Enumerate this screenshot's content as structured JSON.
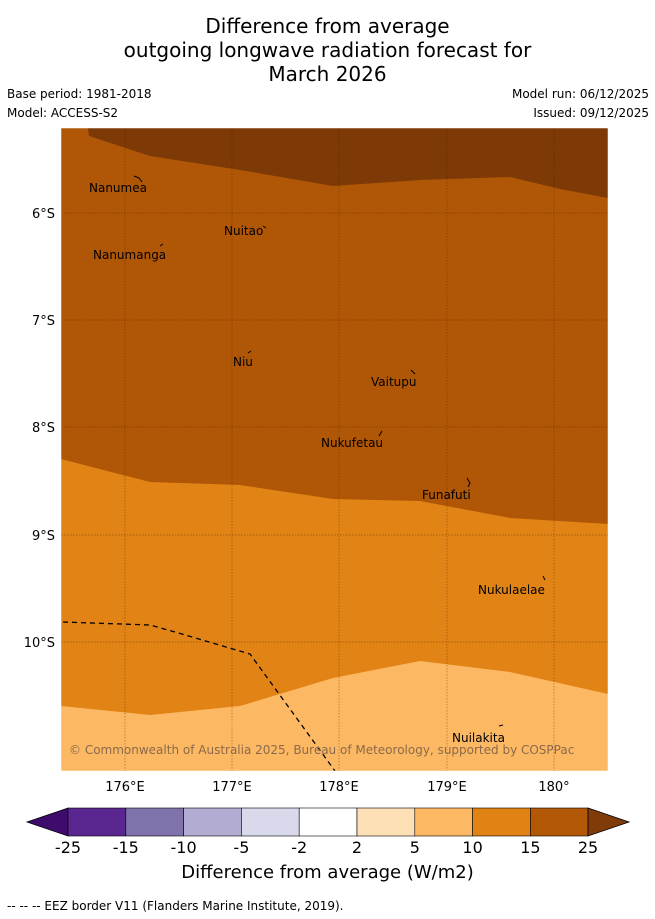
{
  "title": {
    "line1": "Difference from average",
    "line2": "outgoing longwave radiation forecast for",
    "line3": "March 2026"
  },
  "meta": {
    "base_period": "Base period: 1981-2018",
    "model": "Model: ACCESS-S2",
    "model_run": "Model run: 06/12/2025",
    "issued": "Issued: 09/12/2025"
  },
  "map": {
    "lat_labels": [
      "6°S",
      "7°S",
      "8°S",
      "9°S",
      "10°S"
    ],
    "lon_labels": [
      "176°E",
      "177°E",
      "178°E",
      "179°E",
      "180°"
    ],
    "places": [
      {
        "name": "Nanumea"
      },
      {
        "name": "Nuitao"
      },
      {
        "name": "Nanumanga"
      },
      {
        "name": "Niu"
      },
      {
        "name": "Vaitupu"
      },
      {
        "name": "Nukufetau"
      },
      {
        "name": "Funafuti"
      },
      {
        "name": "Nukulaelae"
      },
      {
        "name": "Nuilakita"
      }
    ],
    "copyright": "© Commonwealth of Australia 2025, Bureau of Meteorology, supported by COSPPac",
    "colors": {
      "band_25": "#7e3a06",
      "band_15_25": "#b05707",
      "band_10_15": "#e18315",
      "band_5_10": "#fdb863"
    }
  },
  "colorbar": {
    "ticks": [
      "-25",
      "-15",
      "-10",
      "-5",
      "-2",
      "2",
      "5",
      "10",
      "15",
      "25"
    ],
    "colors": [
      "#3f0c6e",
      "#5a2790",
      "#8073ac",
      "#b2abd2",
      "#d8daeb",
      "#ffffff",
      "#fee0b6",
      "#fdb863",
      "#e08214",
      "#b35806",
      "#7f3b08"
    ],
    "label": "Difference from average (W/m2)"
  },
  "legend": {
    "eez": "-- -- -- EEZ border V11 (Flanders Marine Institute, 2019)."
  }
}
